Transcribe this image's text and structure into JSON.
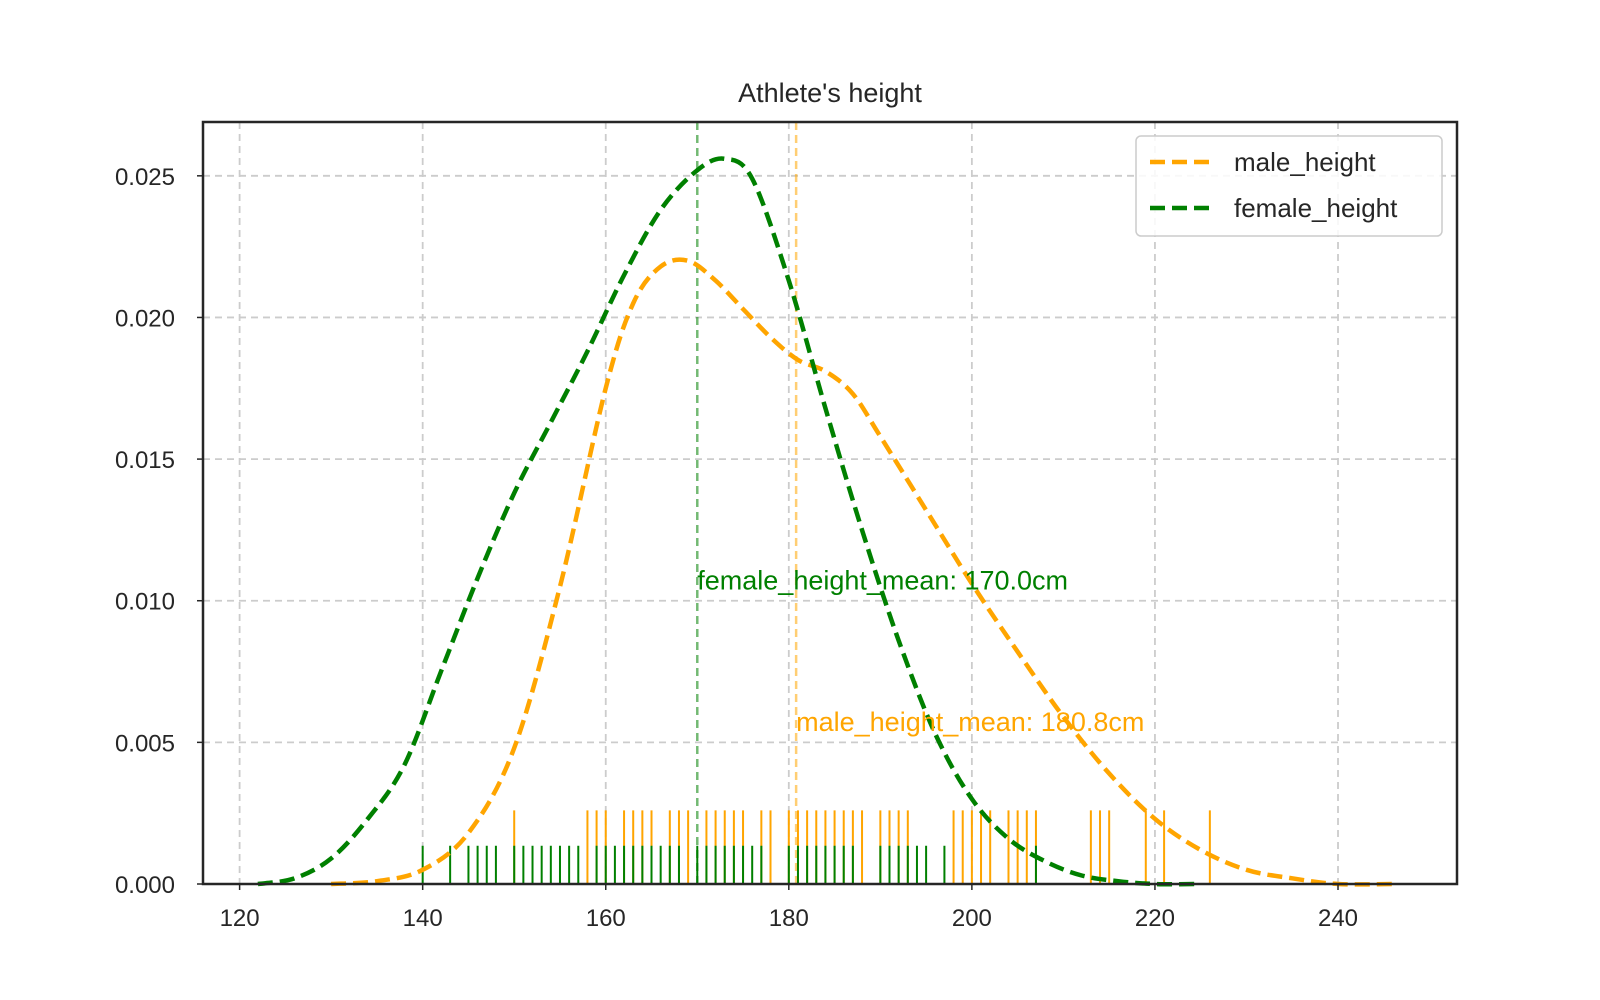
{
  "chart_data": {
    "type": "line",
    "title": "Athlete's height",
    "xlabel": "",
    "ylabel": "",
    "xlim": [
      116,
      253
    ],
    "ylim": [
      0,
      0.0269
    ],
    "x_ticks": [
      120,
      140,
      160,
      180,
      200,
      220,
      240
    ],
    "x_tick_labels": [
      "120",
      "140",
      "160",
      "180",
      "200",
      "220",
      "240"
    ],
    "y_ticks": [
      0,
      0.005,
      0.01,
      0.015,
      0.02,
      0.025
    ],
    "y_tick_labels": [
      "0.000",
      "0.005",
      "0.010",
      "0.015",
      "0.020",
      "0.025"
    ],
    "grid": true,
    "legend_position": "top-right",
    "series": [
      {
        "name": "male_height",
        "color": "#ffa500",
        "style": "dashed",
        "x": [
          130,
          135,
          140,
          145,
          150,
          155,
          160,
          163,
          166,
          169,
          172,
          175,
          178,
          181,
          184,
          187,
          190,
          195,
          200,
          205,
          210,
          215,
          220,
          225,
          230,
          235,
          240,
          246
        ],
        "y": [
          0.0,
          0.0001,
          0.0005,
          0.0018,
          0.0048,
          0.0105,
          0.0175,
          0.0205,
          0.0218,
          0.022,
          0.0213,
          0.0203,
          0.0193,
          0.0185,
          0.0181,
          0.0173,
          0.0158,
          0.0132,
          0.0106,
          0.0082,
          0.0059,
          0.0039,
          0.0023,
          0.0012,
          0.0005,
          0.0002,
          0.0,
          0.0
        ]
      },
      {
        "name": "female_height",
        "color": "#008000",
        "style": "dashed",
        "x": [
          122,
          126,
          130,
          134,
          138,
          142,
          146,
          150,
          154,
          158,
          162,
          166,
          170,
          173,
          176,
          180,
          184,
          188,
          192,
          196,
          200,
          204,
          208,
          212,
          216,
          220,
          225
        ],
        "y": [
          0.0,
          0.0002,
          0.0009,
          0.0023,
          0.0042,
          0.0075,
          0.0108,
          0.0138,
          0.0163,
          0.0188,
          0.0215,
          0.0238,
          0.0252,
          0.0256,
          0.0249,
          0.0213,
          0.0168,
          0.0125,
          0.0086,
          0.0053,
          0.003,
          0.0016,
          0.0008,
          0.0003,
          0.0001,
          0.0,
          0.0
        ]
      }
    ],
    "rugs": [
      {
        "name": "male_height",
        "color": "#ffa500",
        "height": 0.0026,
        "values": [
          150,
          158,
          159,
          160,
          162,
          163,
          164,
          165,
          167,
          168,
          169,
          171,
          172,
          173,
          174,
          175,
          177,
          178,
          180,
          181,
          182,
          183,
          184,
          185,
          186,
          187,
          188,
          190,
          191,
          192,
          193,
          198,
          199,
          200,
          201,
          202,
          204,
          205,
          206,
          207,
          213,
          214,
          215,
          219,
          221,
          226
        ]
      },
      {
        "name": "female_height",
        "color": "#008000",
        "height": 0.00135,
        "values": [
          140,
          143,
          145,
          146,
          147,
          148,
          150,
          151,
          152,
          153,
          154,
          155,
          156,
          157,
          159,
          160,
          161,
          162,
          163,
          164,
          165,
          166,
          167,
          168,
          170,
          171,
          172,
          173,
          174,
          175,
          176,
          177,
          180,
          181,
          182,
          183,
          184,
          185,
          186,
          187,
          190,
          191,
          192,
          193,
          194,
          195,
          197,
          207
        ]
      }
    ],
    "mean_lines": [
      {
        "name": "female_height_mean",
        "value": 170.0,
        "color": "#008000"
      },
      {
        "name": "male_height_mean",
        "value": 180.8,
        "color": "#ffa500"
      }
    ],
    "annotations": [
      {
        "text": "female_height_mean: 170.0cm",
        "x": 170.0,
        "y": 0.0104,
        "color": "#008000"
      },
      {
        "text": "male_height_mean: 180.8cm",
        "x": 180.8,
        "y": 0.0054,
        "color": "#ffa500"
      }
    ]
  }
}
